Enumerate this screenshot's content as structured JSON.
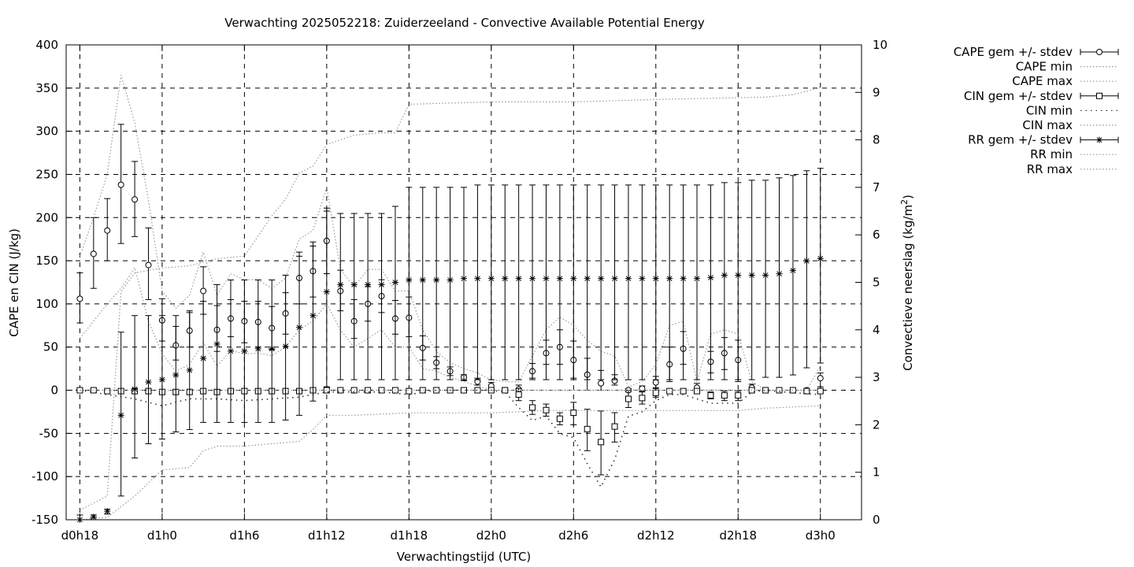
{
  "chart_data": {
    "type": "line",
    "title": "Verwachting 2025052218: Zuiderzeeland - Convective Available Potential Energy",
    "xlabel": "Verwachtingstijd (UTC)",
    "ylabel": "CAPE en CIN (J/kg)",
    "y2label": "Convectieve neerslag (kg/m",
    "y2label_sup": "2",
    "y2label_end": ")",
    "xlim": [
      -1,
      57
    ],
    "ylim": [
      -150,
      400
    ],
    "y2lim": [
      0,
      10
    ],
    "x_ticks": [
      {
        "x": 0,
        "label": "d0h18"
      },
      {
        "x": 6,
        "label": "d1h0"
      },
      {
        "x": 12,
        "label": "d1h6"
      },
      {
        "x": 18,
        "label": "d1h12"
      },
      {
        "x": 24,
        "label": "d1h18"
      },
      {
        "x": 30,
        "label": "d2h0"
      },
      {
        "x": 36,
        "label": "d2h6"
      },
      {
        "x": 42,
        "label": "d2h12"
      },
      {
        "x": 48,
        "label": "d2h18"
      },
      {
        "x": 54,
        "label": "d3h0"
      }
    ],
    "y_ticks": [
      "-150",
      "-100",
      "-50",
      "0",
      "50",
      "100",
      "150",
      "200",
      "250",
      "300",
      "350",
      "400"
    ],
    "y2_ticks": [
      "0",
      "1",
      "2",
      "3",
      "4",
      "5",
      "6",
      "7",
      "8",
      "9",
      "10"
    ],
    "grid": true,
    "legend_position": "right",
    "series": [
      {
        "name": "CAPE gem +/- stdev",
        "marker": "circle",
        "axis": "y1",
        "errorbars": true,
        "x": [
          0,
          1,
          2,
          3,
          4,
          5,
          6,
          7,
          8,
          9,
          10,
          11,
          12,
          13,
          14,
          15,
          16,
          17,
          18,
          19,
          20,
          21,
          22,
          23,
          24,
          25,
          26,
          27,
          28,
          29,
          30,
          31,
          32,
          33,
          34,
          35,
          36,
          37,
          38,
          39,
          40,
          41,
          42,
          43,
          44,
          45,
          46,
          47,
          48,
          49,
          50,
          51,
          52,
          53,
          54
        ],
        "values": [
          106,
          158,
          185,
          238,
          221,
          145,
          81,
          52,
          69,
          115,
          70,
          83,
          80,
          79,
          72,
          89,
          130,
          138,
          173,
          115,
          80,
          100,
          109,
          83,
          84,
          49,
          32,
          22,
          15,
          10,
          5,
          0,
          1,
          22,
          43,
          50,
          35,
          18,
          8,
          11,
          0,
          2,
          9,
          30,
          48,
          3,
          33,
          43,
          35,
          3,
          0,
          0,
          0,
          0,
          14
        ],
        "lows": [
          78,
          118,
          150,
          170,
          178,
          105,
          57,
          35,
          50,
          88,
          45,
          62,
          55,
          50,
          47,
          65,
          100,
          108,
          135,
          92,
          60,
          80,
          90,
          65,
          62,
          35,
          25,
          17,
          11,
          6,
          1,
          -3,
          -4,
          14,
          30,
          30,
          14,
          0,
          0,
          6,
          -2,
          -1,
          3,
          10,
          30,
          -2,
          20,
          24,
          10,
          -1,
          0,
          0,
          0,
          0,
          4
        ],
        "highs": [
          136,
          200,
          222,
          308,
          265,
          188,
          106,
          74,
          90,
          143,
          98,
          105,
          103,
          103,
          97,
          113,
          160,
          167,
          211,
          139,
          105,
          120,
          128,
          104,
          108,
          63,
          39,
          27,
          18,
          14,
          9,
          3,
          6,
          31,
          58,
          70,
          57,
          37,
          23,
          18,
          2,
          5,
          16,
          50,
          68,
          8,
          45,
          61,
          58,
          7,
          0,
          0,
          0,
          0,
          20
        ]
      },
      {
        "name": "CAPE min",
        "dash": "dot",
        "axis": "y1",
        "errorbars": false,
        "x": [
          0,
          2,
          3,
          4,
          5,
          6,
          7,
          8,
          9,
          10,
          11,
          12,
          13,
          14,
          15,
          16,
          17,
          18,
          19,
          20,
          21,
          22,
          23,
          24,
          25,
          26,
          27,
          28,
          29,
          30,
          54
        ],
        "values": [
          60,
          100,
          118,
          142,
          80,
          42,
          22,
          30,
          55,
          28,
          46,
          42,
          43,
          40,
          50,
          70,
          80,
          100,
          70,
          50,
          60,
          70,
          50,
          50,
          25,
          22,
          15,
          10,
          5,
          0,
          0
        ]
      },
      {
        "name": "CAPE max",
        "dash": "dot",
        "axis": "y1",
        "errorbars": false,
        "x": [
          0,
          1,
          2,
          3,
          4,
          5,
          6,
          7,
          8,
          9,
          10,
          11,
          12,
          13,
          14,
          15,
          16,
          17,
          18,
          19,
          20,
          21,
          22,
          23,
          24,
          25,
          26,
          27,
          28,
          29,
          30,
          31,
          32,
          33,
          34,
          35,
          36,
          37,
          38,
          39,
          40,
          41,
          42,
          43,
          44,
          45,
          46,
          47,
          48,
          49,
          50,
          51,
          52,
          53,
          54
        ],
        "values": [
          155,
          200,
          250,
          365,
          310,
          220,
          115,
          95,
          110,
          160,
          110,
          135,
          128,
          128,
          118,
          130,
          175,
          185,
          235,
          140,
          120,
          140,
          140,
          115,
          115,
          70,
          45,
          32,
          25,
          20,
          12,
          10,
          10,
          40,
          70,
          85,
          75,
          58,
          45,
          40,
          4,
          10,
          30,
          75,
          80,
          10,
          65,
          70,
          65,
          10,
          0,
          0,
          0,
          0,
          28
        ]
      },
      {
        "name": "CIN gem +/- stdev",
        "marker": "square",
        "axis": "y1",
        "errorbars": true,
        "x": [
          0,
          1,
          2,
          3,
          4,
          5,
          6,
          7,
          8,
          9,
          10,
          11,
          12,
          13,
          14,
          15,
          16,
          17,
          18,
          19,
          20,
          21,
          22,
          23,
          24,
          25,
          26,
          27,
          28,
          29,
          30,
          31,
          32,
          33,
          34,
          35,
          36,
          37,
          38,
          39,
          40,
          41,
          42,
          43,
          44,
          45,
          46,
          47,
          48,
          49,
          50,
          51,
          52,
          53,
          54
        ],
        "values": [
          0,
          0,
          -1,
          -1,
          -1,
          -1,
          -2,
          -2,
          -2,
          -1,
          -2,
          -1,
          -1,
          -1,
          -1,
          -1,
          -1,
          0,
          0,
          0,
          0,
          0,
          0,
          0,
          -1,
          0,
          0,
          0,
          0,
          0,
          0,
          0,
          -5,
          -20,
          -23,
          -33,
          -26,
          -45,
          -60,
          -42,
          -10,
          -9,
          -3,
          -1,
          -1,
          -1,
          -6,
          -6,
          -6,
          0,
          0,
          0,
          0,
          -1,
          -1
        ],
        "lows": [
          -1,
          -1,
          -2,
          -2,
          -2,
          -2,
          -4,
          -4,
          -4,
          -2,
          -4,
          -2,
          -2,
          -2,
          -2,
          -2,
          -2,
          0,
          0,
          0,
          0,
          0,
          0,
          0,
          -2,
          0,
          0,
          0,
          0,
          0,
          0,
          -1,
          -12,
          -28,
          -30,
          -40,
          -40,
          -70,
          -98,
          -60,
          -20,
          -16,
          -8,
          -3,
          -3,
          -3,
          -10,
          -12,
          -12,
          -1,
          0,
          0,
          0,
          -3,
          -3
        ],
        "highs": [
          1,
          1,
          0,
          0,
          0,
          0,
          0,
          0,
          0,
          0,
          0,
          0,
          0,
          0,
          0,
          0,
          0,
          0,
          0,
          0,
          0,
          0,
          0,
          0,
          0,
          0,
          0,
          0,
          0,
          0,
          0,
          1,
          2,
          -12,
          -16,
          -26,
          -14,
          -22,
          -24,
          -26,
          0,
          -2,
          2,
          1,
          1,
          1,
          -2,
          -1,
          -1,
          1,
          0,
          0,
          0,
          1,
          1
        ]
      },
      {
        "name": "CIN min",
        "dash": "dot-wide",
        "axis": "y1",
        "errorbars": false,
        "x": [
          0,
          2,
          4,
          6,
          8,
          10,
          12,
          14,
          16,
          18,
          20,
          22,
          24,
          26,
          28,
          30,
          31,
          32,
          33,
          34,
          35,
          36,
          37,
          38,
          39,
          40,
          41,
          42,
          43,
          44,
          46,
          48,
          49,
          50,
          52,
          54
        ],
        "values": [
          0,
          -5,
          -10,
          -18,
          -10,
          -10,
          -12,
          -10,
          -8,
          -2,
          -2,
          -2,
          -5,
          0,
          0,
          0,
          -2,
          -20,
          -35,
          -30,
          -50,
          -55,
          -85,
          -112,
          -80,
          -30,
          -25,
          -12,
          -5,
          -5,
          -15,
          -15,
          -2,
          0,
          -3,
          -5
        ]
      },
      {
        "name": "CIN max",
        "dash": "dot",
        "axis": "y1",
        "errorbars": false,
        "x": [
          0,
          54
        ],
        "values": [
          0,
          0
        ]
      },
      {
        "name": "RR gem +/- stdev",
        "marker": "star",
        "axis": "y2",
        "errorbars": true,
        "x": [
          0,
          1,
          2,
          3,
          4,
          5,
          6,
          7,
          8,
          9,
          10,
          11,
          12,
          13,
          14,
          15,
          16,
          17,
          18,
          19,
          20,
          21,
          22,
          23,
          24,
          25,
          26,
          27,
          28,
          29,
          30,
          31,
          32,
          33,
          34,
          35,
          36,
          37,
          38,
          39,
          40,
          41,
          42,
          43,
          44,
          45,
          46,
          47,
          48,
          49,
          50,
          51,
          52,
          53,
          54
        ],
        "values": [
          0.0,
          0.06,
          0.18,
          2.2,
          2.75,
          2.9,
          2.95,
          3.05,
          3.15,
          3.4,
          3.7,
          3.55,
          3.55,
          3.6,
          3.6,
          3.65,
          4.05,
          4.3,
          4.8,
          4.95,
          4.95,
          4.95,
          4.95,
          5.0,
          5.05,
          5.05,
          5.05,
          5.05,
          5.08,
          5.08,
          5.08,
          5.08,
          5.08,
          5.08,
          5.08,
          5.08,
          5.08,
          5.08,
          5.08,
          5.08,
          5.08,
          5.08,
          5.08,
          5.08,
          5.08,
          5.08,
          5.1,
          5.15,
          5.15,
          5.15,
          5.15,
          5.18,
          5.25,
          5.45,
          5.5
        ],
        "lows": [
          0,
          0.03,
          0.12,
          0.5,
          1.3,
          1.6,
          1.7,
          1.85,
          1.9,
          2.05,
          2.05,
          2.05,
          2.05,
          2.05,
          2.05,
          2.1,
          2.2,
          2.5,
          2.8,
          2.95,
          2.95,
          2.95,
          2.95,
          2.95,
          2.95,
          2.95,
          2.95,
          2.95,
          2.95,
          2.95,
          2.95,
          2.95,
          2.95,
          2.95,
          2.95,
          2.95,
          2.95,
          2.95,
          2.95,
          2.95,
          2.95,
          2.95,
          2.95,
          2.95,
          2.95,
          2.95,
          2.95,
          2.95,
          2.95,
          2.95,
          3.0,
          3.0,
          3.05,
          3.2,
          3.3
        ],
        "highs": [
          0.1,
          0.1,
          0.22,
          3.95,
          4.3,
          4.3,
          4.3,
          4.3,
          4.4,
          4.6,
          4.95,
          5.05,
          5.05,
          5.05,
          5.05,
          5.15,
          5.55,
          5.85,
          6.5,
          6.45,
          6.45,
          6.45,
          6.45,
          6.6,
          7.0,
          7.0,
          7.0,
          7.0,
          7.0,
          7.05,
          7.05,
          7.05,
          7.05,
          7.05,
          7.05,
          7.05,
          7.05,
          7.05,
          7.05,
          7.05,
          7.05,
          7.05,
          7.05,
          7.05,
          7.05,
          7.05,
          7.05,
          7.1,
          7.1,
          7.15,
          7.15,
          7.2,
          7.25,
          7.35,
          7.4
        ]
      },
      {
        "name": "RR min",
        "dash": "dot",
        "axis": "y2",
        "errorbars": false,
        "x": [
          0,
          2,
          4,
          6,
          8,
          9,
          10,
          12,
          14,
          16,
          17,
          18,
          20,
          24,
          28,
          30,
          34,
          40,
          48,
          50,
          54
        ],
        "values": [
          0,
          0.05,
          0.5,
          1.05,
          1.1,
          1.45,
          1.55,
          1.55,
          1.6,
          1.65,
          1.9,
          2.2,
          2.2,
          2.25,
          2.25,
          2.25,
          2.3,
          2.3,
          2.3,
          2.35,
          2.4
        ]
      },
      {
        "name": "RR max",
        "dash": "dot",
        "axis": "y2",
        "errorbars": false,
        "x": [
          0,
          2,
          3,
          4,
          6,
          8,
          10,
          12,
          14,
          15,
          16,
          17,
          18,
          20,
          22,
          23,
          24,
          30,
          36,
          42,
          50,
          52,
          54
        ],
        "values": [
          0.2,
          0.5,
          4.8,
          5.2,
          5.3,
          5.35,
          5.5,
          5.55,
          6.4,
          6.75,
          7.3,
          7.45,
          7.9,
          8.1,
          8.15,
          8.15,
          8.75,
          8.8,
          8.8,
          8.85,
          8.9,
          8.95,
          9.1
        ]
      }
    ]
  }
}
